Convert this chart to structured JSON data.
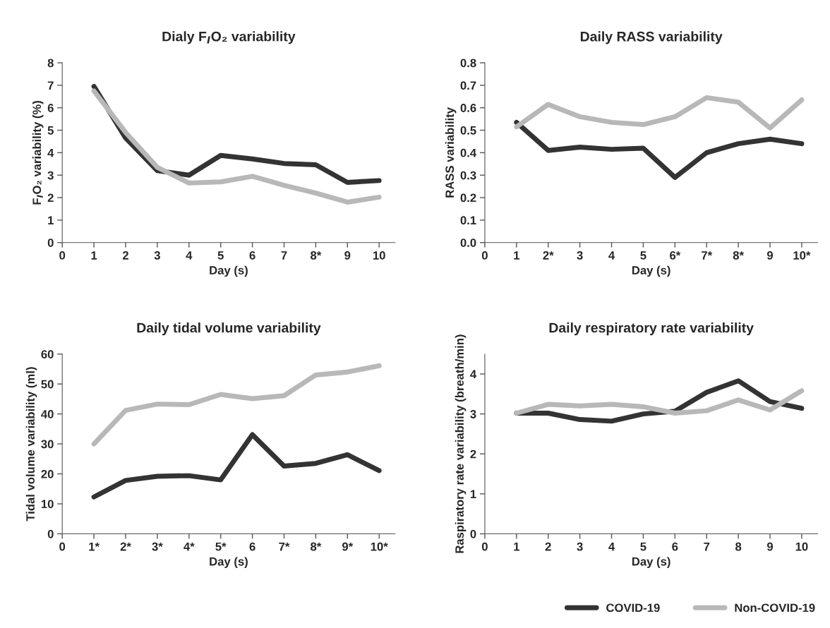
{
  "chart_data": [
    {
      "type": "line",
      "title": "Dialy F$_{I}$O₂ variability",
      "xlabel": "Day (s)",
      "ylabel": "F$_{I}$O₂ variability (%)",
      "x": [
        1,
        2,
        3,
        4,
        5,
        6,
        7,
        8,
        9,
        10
      ],
      "xlim": [
        0,
        10.5
      ],
      "xticks": [
        0,
        1,
        2,
        3,
        4,
        5,
        6,
        7,
        {
          "value": 8,
          "label": "8*"
        },
        9,
        10
      ],
      "ylim": [
        0,
        8
      ],
      "yticks": [
        0,
        1,
        2,
        3,
        4,
        5,
        6,
        7,
        8
      ],
      "grid": false,
      "line_style": "solid",
      "series": [
        {
          "color": "#333333",
          "values": [
            6.95,
            4.65,
            3.2,
            3.0,
            3.88,
            3.72,
            3.52,
            3.46,
            2.68,
            2.76
          ]
        },
        {
          "color": "#b8b8b8",
          "values": [
            6.75,
            4.9,
            3.35,
            2.65,
            2.7,
            2.95,
            2.55,
            2.2,
            1.8,
            2.02
          ]
        }
      ]
    },
    {
      "type": "line",
      "title": "Daily RASS variability",
      "xlabel": "Day (s)",
      "ylabel": "RASS variability",
      "x": [
        1,
        2,
        3,
        4,
        5,
        6,
        7,
        8,
        9,
        10
      ],
      "xlim": [
        0,
        10.5
      ],
      "xticks": [
        0,
        1,
        {
          "value": 2,
          "label": "2*"
        },
        3,
        4,
        5,
        {
          "value": 6,
          "label": "6*"
        },
        {
          "value": 7,
          "label": "7*"
        },
        {
          "value": 8,
          "label": "8*"
        },
        9,
        {
          "value": 10,
          "label": "10*"
        }
      ],
      "ylim": [
        0,
        0.8
      ],
      "yticks": [
        {
          "value": 0,
          "label": "0.0"
        },
        0.1,
        0.2,
        0.3,
        0.4,
        0.5,
        0.6,
        0.7,
        0.8
      ],
      "grid": false,
      "line_style": "solid",
      "series": [
        {
          "color": "#333333",
          "values": [
            0.535,
            0.41,
            0.425,
            0.415,
            0.42,
            0.29,
            0.4,
            0.44,
            0.46,
            0.44
          ]
        },
        {
          "color": "#b8b8b8",
          "values": [
            0.515,
            0.615,
            0.56,
            0.535,
            0.525,
            0.56,
            0.645,
            0.625,
            0.51,
            0.635
          ]
        }
      ]
    },
    {
      "type": "line",
      "title": "Daily tidal volume variability",
      "xlabel": "Day (s)",
      "ylabel": "Tidal volume variability (ml)",
      "x": [
        1,
        2,
        3,
        4,
        5,
        6,
        7,
        8,
        9,
        10
      ],
      "xlim": [
        0,
        10.5
      ],
      "xticks": [
        0,
        {
          "value": 1,
          "label": "1*"
        },
        {
          "value": 2,
          "label": "2*"
        },
        {
          "value": 3,
          "label": "3*"
        },
        {
          "value": 4,
          "label": "4*"
        },
        {
          "value": 5,
          "label": "5*"
        },
        6,
        {
          "value": 7,
          "label": "7*"
        },
        {
          "value": 8,
          "label": "8*"
        },
        {
          "value": 9,
          "label": "9*"
        },
        {
          "value": 10,
          "label": "10*"
        }
      ],
      "ylim": [
        0,
        60
      ],
      "yticks": [
        0,
        10,
        20,
        30,
        40,
        50,
        60
      ],
      "grid": false,
      "line_style": "solid",
      "series": [
        {
          "color": "#333333",
          "values": [
            12.3,
            17.8,
            19.2,
            19.4,
            18.0,
            33.1,
            22.6,
            23.5,
            26.4,
            21.1
          ]
        },
        {
          "color": "#b8b8b8",
          "values": [
            30.0,
            41.2,
            43.3,
            43.1,
            46.5,
            45.1,
            46.1,
            53.0,
            54.0,
            56.1
          ]
        }
      ]
    },
    {
      "type": "line",
      "title": "Daily respiratory rate variability",
      "xlabel": "Day (s)",
      "ylabel": "Raspiratory rate variability (breath/min)",
      "x": [
        1,
        2,
        3,
        4,
        5,
        6,
        7,
        8,
        9,
        10
      ],
      "xlim": [
        0,
        10.5
      ],
      "xticks": [
        0,
        1,
        2,
        3,
        4,
        5,
        6,
        7,
        8,
        9,
        10
      ],
      "ylim": [
        0,
        4.5
      ],
      "yticks": [
        0,
        1,
        2,
        3,
        4
      ],
      "grid": false,
      "line_style": "solid",
      "legend": "bottom right",
      "series": [
        {
          "name": "COVID-19",
          "color": "#333333",
          "values": [
            3.02,
            3.02,
            2.86,
            2.82,
            3.0,
            3.07,
            3.54,
            3.83,
            3.31,
            3.14
          ]
        },
        {
          "name": "Non-COVID-19",
          "color": "#b8b8b8",
          "values": [
            3.02,
            3.24,
            3.2,
            3.24,
            3.18,
            3.02,
            3.08,
            3.35,
            3.1,
            3.58
          ]
        }
      ]
    }
  ]
}
